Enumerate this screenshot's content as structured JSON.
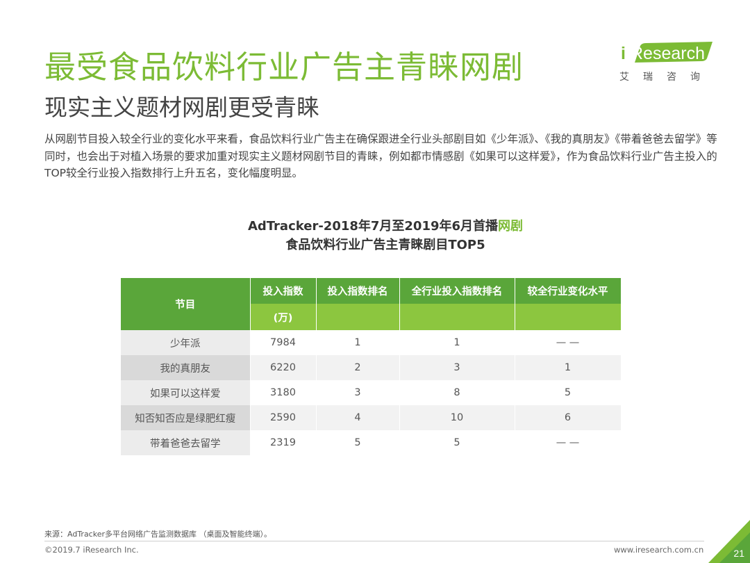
{
  "header": {
    "title": "最受食品饮料行业广告主青睐网剧",
    "subtitle": "现实主义题材网剧更受青睐"
  },
  "logo": {
    "brand": "iResearch",
    "cn": "艾瑞咨询"
  },
  "description": "从网剧节目投入较全行业的变化水平来看，食品饮料行业广告主在确保跟进全行业头部剧目如《少年派》、《我的真朋友》《带着爸爸去留学》等同时，也会出于对植入场景的要求加重对现实主义题材网剧节目的青睐，例如都市情感剧《如果可以这样爱》，作为食品饮料行业广告主投入的TOP较全行业投入指数排行上升五名，变化幅度明显。",
  "chart_title": {
    "line1_prefix": "AdTracker-2018年7月至2019年6月首播",
    "line1_highlight": "网剧",
    "line2": "食品饮料行业广告主青睐剧目TOP5"
  },
  "table": {
    "headers": [
      "节目",
      "投入指数",
      "投入指数排名",
      "全行业投入指数排名",
      "较全行业变化水平"
    ],
    "subheader_unit": "(万)",
    "rows": [
      [
        "少年派",
        "7984",
        "1",
        "1",
        "— —"
      ],
      [
        "我的真朋友",
        "6220",
        "2",
        "3",
        "1"
      ],
      [
        "如果可以这样爱",
        "3180",
        "3",
        "8",
        "5"
      ],
      [
        "知否知否应是绿肥红瘦",
        "2590",
        "4",
        "10",
        "6"
      ],
      [
        "带着爸爸去留学",
        "2319",
        "5",
        "5",
        "— —"
      ]
    ]
  },
  "footer": {
    "source": "来源：AdTracker多平台网络广告监测数据库 （桌面及智能终端）。",
    "copyright": "©2019.7 iResearch Inc.",
    "site": "www.iresearch.com.cn",
    "page": "21"
  },
  "colors": {
    "accent": "#7cbb35",
    "header_dark": "#5aa63a",
    "header_light": "#8cc63f"
  }
}
